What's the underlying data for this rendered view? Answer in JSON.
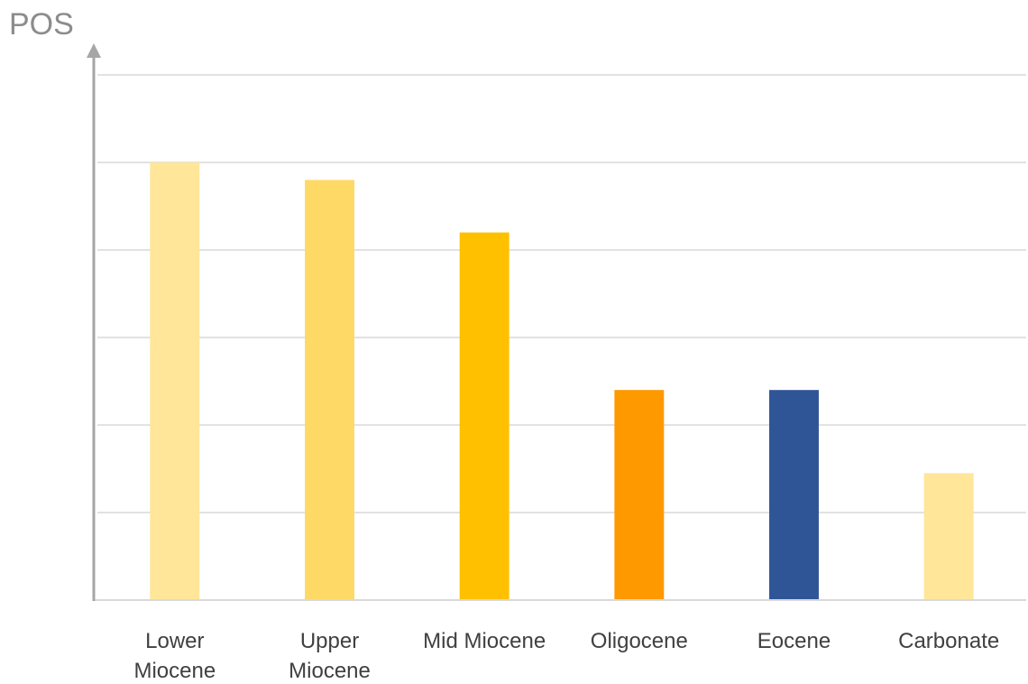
{
  "chart_data": {
    "type": "bar",
    "ylabel": "POS",
    "categories": [
      [
        "Lower",
        "Miocene"
      ],
      [
        "Upper",
        "Miocene"
      ],
      [
        "Mid Miocene"
      ],
      [
        "Oligocene"
      ],
      [
        "Eocene"
      ],
      [
        "Carbonate"
      ]
    ],
    "values": [
      0.5,
      0.48,
      0.42,
      0.24,
      0.24,
      0.145
    ],
    "ylim": [
      0,
      0.6
    ],
    "gridlines": [
      0.1,
      0.2,
      0.3,
      0.4,
      0.5,
      0.6
    ],
    "grid": true,
    "y_tick_labels_shown": false,
    "colors": {
      "bars": [
        "#FFE699",
        "#FFD966",
        "#FFC000",
        "#FF9900",
        "#2F5597",
        "#FFE699"
      ],
      "grid": "#d9d9d9",
      "axis": "#a6a6a6",
      "ylabel": "#8c8c8c",
      "tick_text": "#404040"
    }
  }
}
